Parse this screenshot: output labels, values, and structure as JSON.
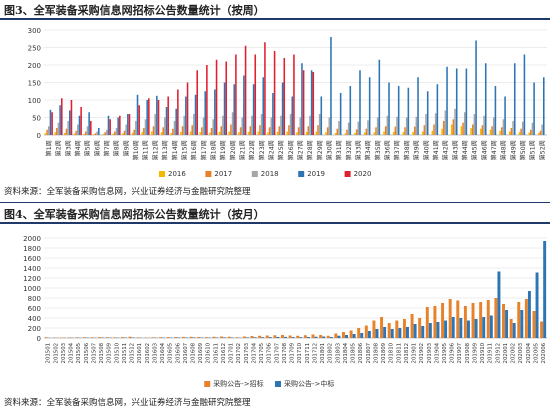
{
  "figure1": {
    "title": "图3、全军装备采购信息网招标公告数量统计（按周）",
    "source": "资料来源：全军装备采购信息网，兴业证券经济与金融研究院整理"
  },
  "figure2": {
    "title": "图4、全军装备采购信息网招标公告数量统计（按月）",
    "source": "资料来源：全军装备采购信息网，兴业证券经济与金融研究院整理"
  },
  "chart_data": [
    {
      "type": "bar",
      "ylim": [
        0,
        300
      ],
      "yticks": [
        0,
        50,
        100,
        150,
        200,
        250,
        300
      ],
      "grid": true,
      "legend_position": "bottom",
      "categories": [
        "第1周",
        "第2周",
        "第3周",
        "第4周",
        "第5周",
        "第6周",
        "第7周",
        "第8周",
        "第9周",
        "第10周",
        "第11周",
        "第12周",
        "第13周",
        "第14周",
        "第15周",
        "第16周",
        "第17周",
        "第18周",
        "第19周",
        "第20周",
        "第21周",
        "第22周",
        "第23周",
        "第24周",
        "第25周",
        "第26周",
        "第27周",
        "第28周",
        "第29周",
        "第30周",
        "第31周",
        "第32周",
        "第33周",
        "第34周",
        "第35周",
        "第36周",
        "第37周",
        "第38周",
        "第39周",
        "第40周",
        "第41周",
        "第42周",
        "第43周",
        "第44周",
        "第45周",
        "第46周",
        "第47周",
        "第48周",
        "第49周",
        "第50周",
        "第51周",
        "第52周"
      ],
      "series": [
        {
          "name": "2016",
          "color": "#f5b800",
          "values": [
            5,
            8,
            6,
            4,
            3,
            2,
            3,
            4,
            5,
            6,
            8,
            10,
            8,
            6,
            9,
            10,
            8,
            7,
            9,
            10,
            8,
            9,
            10,
            8,
            9,
            10,
            8,
            9,
            10,
            8,
            6,
            5,
            6,
            7,
            8,
            10,
            9,
            8,
            9,
            10,
            12,
            18,
            30,
            25,
            20,
            18,
            15,
            12,
            10,
            8,
            7,
            6
          ]
        },
        {
          "name": "2017",
          "color": "#e8822a",
          "values": [
            15,
            20,
            18,
            12,
            10,
            5,
            8,
            10,
            12,
            15,
            20,
            25,
            22,
            18,
            25,
            28,
            22,
            20,
            25,
            30,
            22,
            25,
            28,
            22,
            25,
            28,
            22,
            25,
            28,
            22,
            18,
            15,
            16,
            18,
            22,
            25,
            24,
            22,
            24,
            28,
            30,
            40,
            45,
            35,
            30,
            28,
            25,
            22,
            20,
            18,
            15,
            12
          ]
        },
        {
          "name": "2018",
          "color": "#a6a6a6",
          "values": [
            25,
            35,
            40,
            30,
            25,
            10,
            15,
            20,
            30,
            40,
            45,
            60,
            50,
            40,
            55,
            60,
            50,
            45,
            55,
            65,
            50,
            55,
            60,
            50,
            55,
            60,
            50,
            55,
            60,
            50,
            40,
            35,
            38,
            42,
            50,
            55,
            52,
            50,
            52,
            60,
            62,
            70,
            75,
            65,
            60,
            55,
            50,
            45,
            40,
            38,
            35,
            30
          ]
        },
        {
          "name": "2019",
          "color": "#2e75b6",
          "values": [
            72,
            85,
            70,
            55,
            65,
            20,
            55,
            50,
            60,
            115,
            100,
            112,
            80,
            75,
            110,
            115,
            125,
            130,
            150,
            145,
            170,
            145,
            165,
            120,
            150,
            110,
            205,
            185,
            110,
            280,
            120,
            140,
            185,
            165,
            215,
            150,
            140,
            135,
            165,
            125,
            145,
            195,
            190,
            190,
            270,
            205,
            140,
            110,
            205,
            230,
            150,
            165
          ]
        },
        {
          "name": "2020",
          "color": "#e0202f",
          "values": [
            65,
            105,
            100,
            80,
            40,
            0,
            45,
            55,
            60,
            85,
            105,
            100,
            110,
            130,
            150,
            185,
            200,
            215,
            210,
            230,
            255,
            230,
            265,
            240,
            220,
            230,
            185,
            180,
            0,
            0,
            0,
            0,
            0,
            0,
            0,
            0,
            0,
            0,
            0,
            0,
            0,
            0,
            0,
            0,
            0,
            0,
            0,
            0,
            0,
            0,
            0,
            0
          ]
        }
      ]
    },
    {
      "type": "bar",
      "ylim": [
        0,
        2000
      ],
      "yticks": [
        0,
        200,
        400,
        600,
        800,
        1000,
        1200,
        1400,
        1600,
        1800,
        2000
      ],
      "grid": true,
      "legend_position": "bottom",
      "categories": [
        "201501",
        "201502",
        "201503",
        "201504",
        "201505",
        "201506",
        "201507",
        "201508",
        "201509",
        "201510",
        "201511",
        "201512",
        "201601",
        "201602",
        "201603",
        "201604",
        "201605",
        "201606",
        "201607",
        "201608",
        "201609",
        "201610",
        "201611",
        "201612",
        "201701",
        "201702",
        "201703",
        "201704",
        "201705",
        "201706",
        "201707",
        "201708",
        "201709",
        "201710",
        "201711",
        "201712",
        "201801",
        "201802",
        "201803",
        "201804",
        "201805",
        "201806",
        "201807",
        "201808",
        "201809",
        "201810",
        "201811",
        "201812",
        "201901",
        "201902",
        "201903",
        "201904",
        "201905",
        "201906",
        "201907",
        "201908",
        "201909",
        "201910",
        "201911",
        "201912",
        "202001",
        "202002",
        "202003",
        "202004",
        "202005",
        "202006"
      ],
      "series": [
        {
          "name": "采购公告->招标",
          "color": "#e8822a",
          "values": [
            15,
            10,
            10,
            12,
            14,
            16,
            15,
            18,
            16,
            14,
            18,
            25,
            12,
            8,
            14,
            16,
            18,
            20,
            22,
            24,
            20,
            18,
            24,
            30,
            25,
            15,
            30,
            40,
            45,
            50,
            55,
            60,
            50,
            45,
            55,
            70,
            60,
            45,
            90,
            120,
            150,
            200,
            250,
            350,
            420,
            300,
            350,
            380,
            480,
            400,
            620,
            640,
            700,
            780,
            750,
            640,
            700,
            720,
            760,
            800,
            680,
            380,
            720,
            780,
            540,
            330
          ]
        },
        {
          "name": "采购公告->中标",
          "color": "#2e75b6",
          "values": [
            5,
            4,
            5,
            6,
            6,
            7,
            6,
            8,
            7,
            6,
            8,
            10,
            6,
            4,
            6,
            8,
            8,
            9,
            10,
            11,
            9,
            8,
            10,
            12,
            10,
            6,
            12,
            14,
            16,
            18,
            20,
            22,
            18,
            16,
            20,
            25,
            30,
            20,
            45,
            60,
            80,
            100,
            140,
            180,
            220,
            180,
            200,
            220,
            280,
            240,
            300,
            320,
            350,
            420,
            400,
            350,
            380,
            420,
            450,
            1330,
            560,
            300,
            560,
            940,
            1310,
            1940
          ]
        }
      ]
    }
  ]
}
